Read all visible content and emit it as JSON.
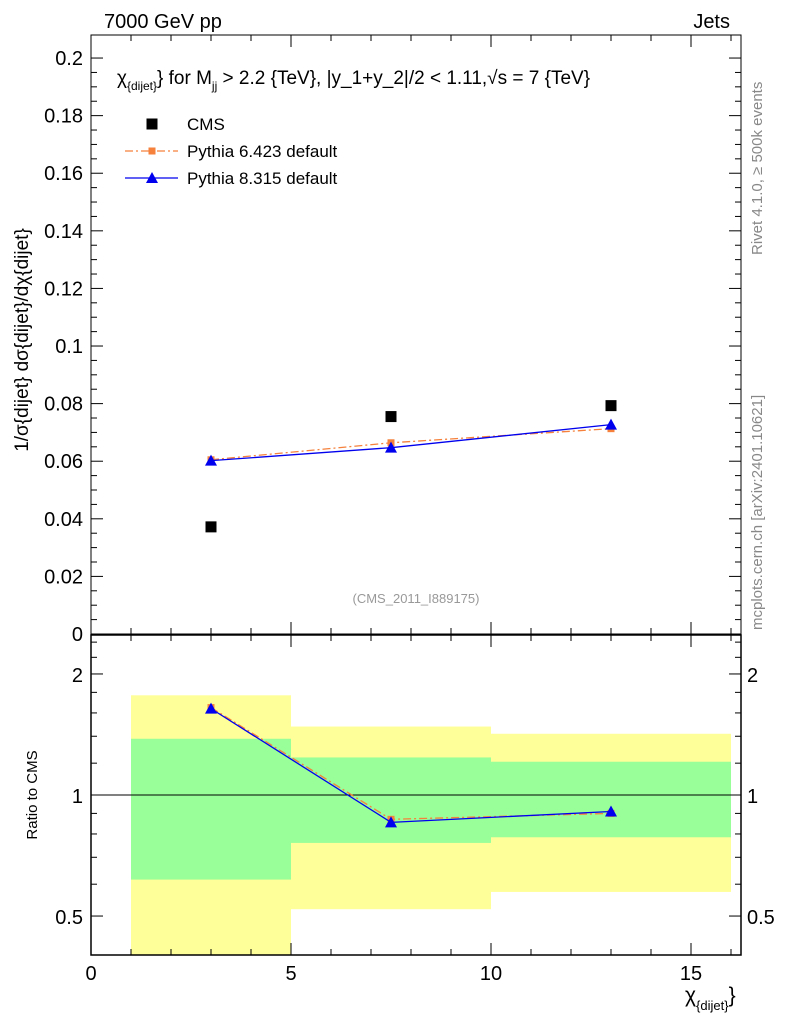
{
  "header": {
    "left": "7000 GeV pp",
    "right": "Jets"
  },
  "side_texts": {
    "rivet": "Rivet 4.1.0, ≥ 500k events",
    "mcplots": "mcplots.cern.ch [arXiv:2401.10621]"
  },
  "watermark": "(CMS_2011_I889175)",
  "chart_data": [
    {
      "type": "scatter",
      "title_parts": {
        "chi": "χ",
        "chi_sub": "{dijet}",
        "mid": "} for M",
        "m_sub": "jj",
        "rest": " > 2.2 {TeV}, |y_1+y_2|/2 < 1.11,√s = 7 {TeV}"
      },
      "ylabel": "1/σ{dijet} dσ{dijet}/dχ{dijet}",
      "xlim": [
        0,
        16.25
      ],
      "ylim": [
        0,
        0.208
      ],
      "yticks": [
        0,
        0.02,
        0.04,
        0.06,
        0.08,
        0.1,
        0.12,
        0.14,
        0.16,
        0.18,
        0.2
      ],
      "yticklabels": [
        "0",
        "0.02",
        "0.04",
        "0.06",
        "0.08",
        "0.1",
        "0.12",
        "0.14",
        "0.16",
        "0.18",
        "0.2"
      ],
      "legend_position": "top-left",
      "series": [
        {
          "name": "CMS",
          "marker": "square",
          "color": "#000000",
          "x": [
            3,
            7.5,
            13
          ],
          "y": [
            0.0372,
            0.0755,
            0.0793
          ]
        },
        {
          "name": "Pythia 6.423 default",
          "marker": "square",
          "line": "dashdot",
          "color": "#f5813c",
          "x": [
            3,
            7.5,
            13
          ],
          "y": [
            0.0605,
            0.0664,
            0.0713
          ]
        },
        {
          "name": "Pythia 8.315 default",
          "marker": "triangle",
          "line": "solid",
          "color": "#0000ee",
          "x": [
            3,
            7.5,
            13
          ],
          "y": [
            0.0602,
            0.0647,
            0.0727
          ]
        }
      ]
    },
    {
      "type": "line",
      "ylabel": "Ratio to CMS",
      "xlabel": "χ",
      "xlabel_sub": "{dijet}",
      "yscale": "log",
      "xlim": [
        0,
        16.25
      ],
      "ylim": [
        0.4,
        2.5
      ],
      "xticks": [
        0,
        5,
        10,
        15
      ],
      "xticklabels": [
        "0",
        "5",
        "10",
        "15"
      ],
      "yticks": [
        0.5,
        1,
        2
      ],
      "yticklabels": [
        "0.5",
        "1",
        "2"
      ],
      "bands": [
        {
          "x": [
            1,
            5
          ],
          "yellow": [
            0.4,
            1.77
          ],
          "green": [
            0.616,
            1.38
          ]
        },
        {
          "x": [
            5,
            10
          ],
          "yellow": [
            0.52,
            1.48
          ],
          "green": [
            0.76,
            1.24
          ]
        },
        {
          "x": [
            10,
            16
          ],
          "yellow": [
            0.574,
            1.42
          ],
          "green": [
            0.785,
            1.21
          ]
        }
      ],
      "series": [
        {
          "name": "Pythia 6.423 default",
          "color": "#f5813c",
          "x": [
            3,
            7.5,
            13
          ],
          "y": [
            1.65,
            0.87,
            0.9
          ]
        },
        {
          "name": "Pythia 8.315 default",
          "color": "#0000ee",
          "x": [
            3,
            7.5,
            13
          ],
          "y": [
            1.64,
            0.855,
            0.91
          ]
        }
      ]
    }
  ]
}
